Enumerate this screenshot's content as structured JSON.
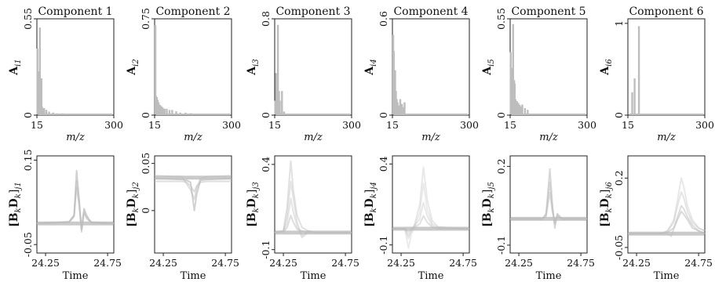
{
  "figure": {
    "top_row": {
      "ylabel_prefix": "A",
      "xlabel": "m/z",
      "xticks": [
        "15",
        "300"
      ]
    },
    "bottom_row": {
      "ylabel": "[BkDk]",
      "ylabel_sub_prefix": "j",
      "xlabel": "Time",
      "xticks": [
        "24.25",
        "24.75"
      ]
    },
    "gray": "#bdbdbd"
  },
  "chart_data": [
    {
      "type": "bar",
      "title": "Component 1",
      "xlabel": "m/z",
      "ylabel": "Ai1",
      "xlim": [
        15,
        300
      ],
      "ylim": [
        0,
        0.55
      ],
      "yticks": [
        "0",
        "0.55"
      ],
      "xticks": [
        "15",
        "300"
      ],
      "peaks": [
        [
          17,
          0.38
        ],
        [
          19,
          0.24
        ],
        [
          21,
          0.25
        ],
        [
          23,
          0.12
        ],
        [
          26,
          0.5
        ],
        [
          28,
          0.08
        ],
        [
          30,
          0.19
        ],
        [
          32,
          0.21
        ],
        [
          34,
          0.05
        ],
        [
          38,
          0.04
        ],
        [
          42,
          0.04
        ],
        [
          50,
          0.03
        ],
        [
          60,
          0.02
        ],
        [
          75,
          0.015
        ],
        [
          90,
          0.01
        ],
        [
          110,
          0.01
        ]
      ]
    },
    {
      "type": "bar",
      "title": "Component 2",
      "xlabel": "m/z",
      "ylabel": "Ai2",
      "xlim": [
        15,
        300
      ],
      "ylim": [
        0,
        0.75
      ],
      "yticks": [
        "0",
        "0.75"
      ],
      "xticks": [
        "15",
        "300"
      ],
      "peaks": [
        [
          18,
          0.7
        ],
        [
          20,
          0.15
        ],
        [
          23,
          0.14
        ],
        [
          26,
          0.12
        ],
        [
          30,
          0.1
        ],
        [
          35,
          0.08
        ],
        [
          40,
          0.07
        ],
        [
          45,
          0.06
        ],
        [
          52,
          0.05
        ],
        [
          60,
          0.05
        ],
        [
          70,
          0.04
        ],
        [
          80,
          0.04
        ],
        [
          95,
          0.03
        ],
        [
          110,
          0.02
        ],
        [
          130,
          0.02
        ],
        [
          150,
          0.015
        ]
      ]
    },
    {
      "type": "bar",
      "title": "Component 3",
      "xlabel": "m/z",
      "ylabel": "Ai3",
      "xlim": [
        15,
        300
      ],
      "ylim": [
        0,
        0.8
      ],
      "yticks": [
        "0",
        "0.8"
      ],
      "xticks": [
        "15",
        "300"
      ],
      "peaks": [
        [
          17,
          0.12
        ],
        [
          20,
          0.35
        ],
        [
          23,
          0.2
        ],
        [
          27,
          0.75
        ],
        [
          31,
          0.2
        ],
        [
          34,
          0.12
        ],
        [
          42,
          0.2
        ],
        [
          50,
          0.03
        ]
      ]
    },
    {
      "type": "bar",
      "title": "Component 4",
      "xlabel": "m/z",
      "ylabel": "Ai4",
      "xlim": [
        15,
        300
      ],
      "ylim": [
        0,
        0.6
      ],
      "yticks": [
        "0",
        "0.6"
      ],
      "xticks": [
        "15",
        "300"
      ],
      "peaks": [
        [
          18,
          0.5
        ],
        [
          20,
          0.4
        ],
        [
          22,
          0.2
        ],
        [
          25,
          0.28
        ],
        [
          28,
          0.15
        ],
        [
          31,
          0.1
        ],
        [
          34,
          0.08
        ],
        [
          38,
          0.06
        ],
        [
          44,
          0.1
        ],
        [
          50,
          0.07
        ],
        [
          55,
          0.05
        ],
        [
          60,
          0.08
        ]
      ]
    },
    {
      "type": "bar",
      "title": "Component 5",
      "xlabel": "m/z",
      "ylabel": "Ai5",
      "xlim": [
        15,
        300
      ],
      "ylim": [
        0,
        0.55
      ],
      "yticks": [
        "0",
        "0.55"
      ],
      "xticks": [
        "15",
        "300"
      ],
      "peaks": [
        [
          17,
          0.36
        ],
        [
          19,
          0.26
        ],
        [
          21,
          0.27
        ],
        [
          23,
          0.13
        ],
        [
          26,
          0.52
        ],
        [
          28,
          0.12
        ],
        [
          30,
          0.2
        ],
        [
          32,
          0.18
        ],
        [
          35,
          0.09
        ],
        [
          40,
          0.08
        ],
        [
          45,
          0.07
        ],
        [
          50,
          0.06
        ],
        [
          55,
          0.05
        ],
        [
          60,
          0.06
        ],
        [
          70,
          0.04
        ],
        [
          80,
          0.03
        ]
      ]
    },
    {
      "type": "bar",
      "title": "Component 6",
      "xlabel": "m/z",
      "ylabel": "Ai6",
      "xlim": [
        15,
        300
      ],
      "ylim": [
        0,
        1.05
      ],
      "yticks": [
        "0",
        "1"
      ],
      "xticks": [
        "15",
        "300"
      ],
      "peaks": [
        [
          31,
          0.25
        ],
        [
          40,
          0.4
        ],
        [
          56,
          0.97
        ]
      ]
    },
    {
      "type": "line",
      "xlabel": "Time",
      "ylabel": "[BkDk]j1",
      "xlim": [
        24.18,
        24.8
      ],
      "ylim": [
        -0.07,
        0.16
      ],
      "yticks": [
        "0.15",
        "-0.05"
      ],
      "xticks": [
        "24.25",
        "24.75"
      ],
      "baseline": 0.0,
      "profiles": [
        {
          "t": [
            24.18,
            24.44,
            24.48,
            24.5,
            24.52,
            24.54,
            24.56,
            24.58,
            24.6,
            24.62,
            24.8
          ],
          "y": [
            0,
            0.004,
            0.02,
            0.125,
            0.06,
            -0.015,
            0.035,
            0.02,
            0.01,
            0.003,
            0.0
          ],
          "opacity": 0.7
        },
        {
          "t": [
            24.18,
            24.44,
            24.48,
            24.5,
            24.52,
            24.54,
            24.56,
            24.58,
            24.6,
            24.62,
            24.8
          ],
          "y": [
            0,
            0.003,
            0.016,
            0.1,
            0.05,
            -0.02,
            0.025,
            0.015,
            0.008,
            0.002,
            0.0
          ],
          "opacity": 0.6
        },
        {
          "t": [
            24.18,
            24.44,
            24.48,
            24.5,
            24.52,
            24.54,
            24.56,
            24.58,
            24.6,
            24.62,
            24.8
          ],
          "y": [
            0,
            0.004,
            0.018,
            0.085,
            0.045,
            -0.01,
            0.03,
            0.012,
            0.006,
            0.002,
            0.0
          ],
          "opacity": 0.5
        }
      ]
    },
    {
      "type": "line",
      "xlabel": "Time",
      "ylabel": "[BkDk]j2",
      "xlim": [
        24.18,
        24.8
      ],
      "ylim": [
        -0.045,
        0.058
      ],
      "yticks": [
        "0.05",
        "0"
      ],
      "xticks": [
        "24.25",
        "24.75"
      ],
      "baseline": 0.035,
      "profiles": [
        {
          "t": [
            24.18,
            24.4,
            24.44,
            24.47,
            24.5,
            24.52,
            24.55,
            24.6,
            24.8
          ],
          "y": [
            0.034,
            0.033,
            0.032,
            0.03,
            0.0,
            0.018,
            0.032,
            0.033,
            0.034
          ],
          "opacity": 0.7
        },
        {
          "t": [
            24.18,
            24.4,
            24.44,
            24.47,
            24.5,
            24.52,
            24.55,
            24.6,
            24.8
          ],
          "y": [
            0.037,
            0.036,
            0.028,
            0.022,
            0.012,
            0.024,
            0.034,
            0.036,
            0.037
          ],
          "opacity": 0.5
        },
        {
          "t": [
            24.18,
            24.4,
            24.44,
            24.47,
            24.5,
            24.52,
            24.55,
            24.6,
            24.8
          ],
          "y": [
            0.031,
            0.031,
            0.03,
            0.026,
            0.02,
            0.026,
            0.03,
            0.031,
            0.031
          ],
          "opacity": 0.5
        }
      ]
    },
    {
      "type": "line",
      "xlabel": "Time",
      "ylabel": "[BkDk]j3",
      "xlim": [
        24.18,
        24.8
      ],
      "ylim": [
        -0.12,
        0.45
      ],
      "yticks": [
        "0.4",
        "-0.1"
      ],
      "xticks": [
        "24.25",
        "24.75"
      ],
      "baseline": 0.0,
      "profiles": [
        {
          "t": [
            24.18,
            24.25,
            24.28,
            24.31,
            24.33,
            24.36,
            24.4,
            24.45,
            24.5,
            24.8
          ],
          "y": [
            0,
            0.01,
            0.15,
            0.42,
            0.25,
            0.1,
            0.03,
            0.01,
            0,
            0
          ],
          "opacity": 0.45
        },
        {
          "t": [
            24.18,
            24.25,
            24.28,
            24.31,
            24.33,
            24.36,
            24.4,
            24.45,
            24.5,
            24.8
          ],
          "y": [
            0,
            0.01,
            0.1,
            0.3,
            0.2,
            0.06,
            -0.02,
            0.01,
            0,
            0
          ],
          "opacity": 0.4
        },
        {
          "t": [
            24.18,
            24.25,
            24.28,
            24.31,
            24.33,
            24.36,
            24.4,
            24.45,
            24.5,
            24.8
          ],
          "y": [
            0,
            0.005,
            0.06,
            0.2,
            0.12,
            0.04,
            -0.03,
            0,
            0,
            0
          ],
          "opacity": 0.4
        },
        {
          "t": [
            24.18,
            24.25,
            24.28,
            24.31,
            24.33,
            24.36,
            24.4,
            24.45,
            24.5,
            24.8
          ],
          "y": [
            0,
            0.005,
            0.03,
            0.1,
            0.06,
            0.02,
            0.01,
            0,
            0,
            0
          ],
          "opacity": 0.5
        }
      ]
    },
    {
      "type": "line",
      "xlabel": "Time",
      "ylabel": "[BkDk]j4",
      "xlim": [
        24.18,
        24.8
      ],
      "ylim": [
        -0.15,
        0.45
      ],
      "yticks": [
        "0.4",
        "-0.1"
      ],
      "xticks": [
        "24.25",
        "24.75"
      ],
      "baseline": 0.0,
      "profiles": [
        {
          "t": [
            24.18,
            24.28,
            24.31,
            24.33,
            24.36,
            24.4,
            24.43,
            24.46,
            24.5,
            24.55,
            24.8
          ],
          "y": [
            0,
            0,
            -0.06,
            -0.02,
            0.03,
            0.15,
            0.38,
            0.18,
            0.05,
            0.01,
            0
          ],
          "opacity": 0.35
        },
        {
          "t": [
            24.18,
            24.28,
            24.31,
            24.33,
            24.36,
            24.4,
            24.43,
            24.46,
            24.5,
            24.55,
            24.8
          ],
          "y": [
            0,
            0,
            -0.12,
            -0.04,
            0.02,
            0.1,
            0.28,
            0.12,
            0.03,
            0.01,
            0
          ],
          "opacity": 0.3
        },
        {
          "t": [
            24.18,
            24.28,
            24.31,
            24.33,
            24.36,
            24.4,
            24.43,
            24.46,
            24.5,
            24.55,
            24.8
          ],
          "y": [
            0,
            0,
            -0.04,
            -0.01,
            0.02,
            0.06,
            0.16,
            0.08,
            0.02,
            0,
            0
          ],
          "opacity": 0.35
        },
        {
          "t": [
            24.18,
            24.28,
            24.31,
            24.33,
            24.36,
            24.4,
            24.43,
            24.46,
            24.5,
            24.55,
            24.8
          ],
          "y": [
            0,
            0,
            -0.02,
            0,
            0.01,
            0.03,
            0.08,
            0.04,
            0.01,
            0,
            0
          ],
          "opacity": 0.45
        }
      ]
    },
    {
      "type": "line",
      "xlabel": "Time",
      "ylabel": "[BkDk]j5",
      "xlim": [
        24.18,
        24.8
      ],
      "ylim": [
        -0.13,
        0.24
      ],
      "yticks": [
        "0.2",
        "-0.1"
      ],
      "xticks": [
        "24.25",
        "24.75"
      ],
      "baseline": 0.0,
      "profiles": [
        {
          "t": [
            24.18,
            24.44,
            24.47,
            24.5,
            24.52,
            24.54,
            24.56,
            24.58,
            24.6,
            24.8
          ],
          "y": [
            0,
            0,
            0.02,
            0.19,
            0.06,
            -0.035,
            0.02,
            0.01,
            0,
            0
          ],
          "opacity": 0.6
        },
        {
          "t": [
            24.18,
            24.44,
            24.47,
            24.5,
            24.52,
            24.54,
            24.56,
            24.58,
            24.6,
            24.8
          ],
          "y": [
            0,
            0,
            0.015,
            0.14,
            0.04,
            -0.02,
            0.015,
            0.005,
            0,
            0
          ],
          "opacity": 0.55
        },
        {
          "t": [
            24.18,
            24.44,
            24.47,
            24.5,
            24.52,
            24.54,
            24.56,
            24.58,
            24.6,
            24.8
          ],
          "y": [
            0,
            0,
            0.01,
            0.1,
            0.03,
            -0.01,
            0.01,
            0.004,
            0,
            0
          ],
          "opacity": 0.5
        }
      ]
    },
    {
      "type": "line",
      "xlabel": "Time",
      "ylabel": "[BkDk]j6",
      "xlim": [
        24.18,
        24.8
      ],
      "ylim": [
        -0.07,
        0.28
      ],
      "yticks": [
        "0.2",
        "-0.05"
      ],
      "xticks": [
        "24.25",
        "24.75"
      ],
      "baseline": 0.0,
      "profiles": [
        {
          "t": [
            24.18,
            24.45,
            24.5,
            24.55,
            24.58,
            24.61,
            24.63,
            24.66,
            24.7,
            24.75,
            24.8
          ],
          "y": [
            0,
            0,
            0.01,
            0.05,
            0.12,
            0.2,
            0.17,
            0.1,
            0.05,
            0.02,
            0.01
          ],
          "opacity": 0.35
        },
        {
          "t": [
            24.18,
            24.45,
            24.5,
            24.55,
            24.58,
            24.61,
            24.63,
            24.66,
            24.7,
            24.75,
            24.8
          ],
          "y": [
            0,
            0,
            0.01,
            0.04,
            0.1,
            0.15,
            0.13,
            0.08,
            0.04,
            0.02,
            0.01
          ],
          "opacity": 0.4
        },
        {
          "t": [
            24.18,
            24.45,
            24.5,
            24.53,
            24.58,
            24.61,
            24.63,
            24.66,
            24.7,
            24.75,
            24.8
          ],
          "y": [
            0,
            0,
            0.0,
            -0.01,
            0.06,
            0.1,
            0.09,
            0.06,
            0.03,
            0.01,
            0.0
          ],
          "opacity": 0.5
        },
        {
          "t": [
            24.18,
            24.45,
            24.5,
            24.55,
            24.58,
            24.61,
            24.63,
            24.66,
            24.7,
            24.75,
            24.8
          ],
          "y": [
            0,
            0,
            0.005,
            0.02,
            0.05,
            0.08,
            0.07,
            0.05,
            0.02,
            0.01,
            0.0
          ],
          "opacity": 0.55
        }
      ]
    }
  ]
}
